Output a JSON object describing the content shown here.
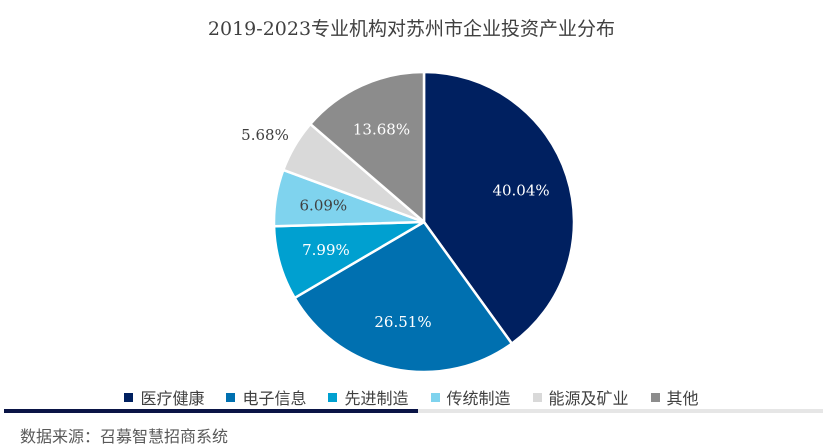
{
  "chart_data": {
    "type": "pie",
    "title": "2019-2023专业机构对苏州市企业投资产业分布",
    "categories": [
      "医疗健康",
      "电子信息",
      "先进制造",
      "传统制造",
      "能源及矿业",
      "其他"
    ],
    "values": [
      40.04,
      26.51,
      7.99,
      6.09,
      5.68,
      13.68
    ],
    "labels": [
      "40.04%",
      "26.51%",
      "7.99%",
      "6.09%",
      "5.68%",
      "13.68%"
    ],
    "colors": [
      "#002060",
      "#0070b0",
      "#00a0d0",
      "#7fd3ee",
      "#d9d9d9",
      "#8c8c8c"
    ],
    "label_colors": [
      "#ffffff",
      "#ffffff",
      "#ffffff",
      "#404040",
      "#404040",
      "#ffffff"
    ],
    "legend_position": "bottom"
  },
  "footer": {
    "source": "数据来源：召募智慧招商系统"
  }
}
